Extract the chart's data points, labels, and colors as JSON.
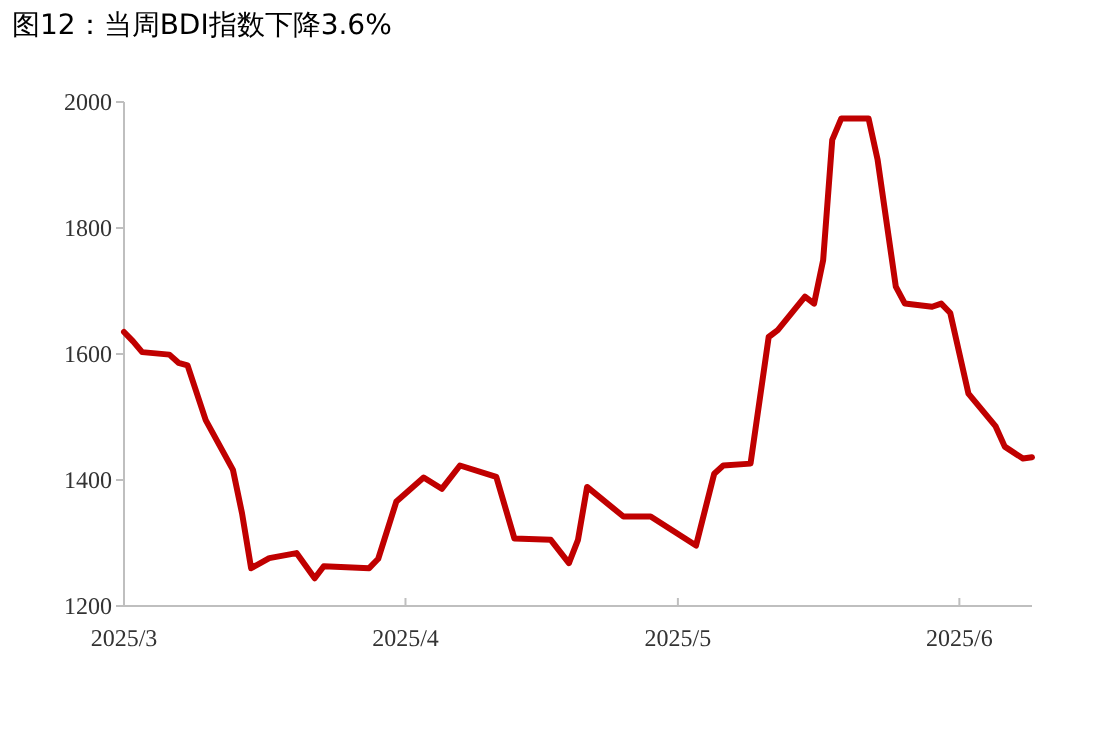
{
  "chart_data": {
    "type": "line",
    "title": "图12：当周BDI指数下降3.6%",
    "x": [
      "2025-03-01",
      "2025-03-02",
      "2025-03-03",
      "2025-03-06",
      "2025-03-07",
      "2025-03-08",
      "2025-03-10",
      "2025-03-13",
      "2025-03-14",
      "2025-03-15",
      "2025-03-17",
      "2025-03-20",
      "2025-03-22",
      "2025-03-23",
      "2025-03-28",
      "2025-03-29",
      "2025-03-31",
      "2025-04-03",
      "2025-04-05",
      "2025-04-07",
      "2025-04-11",
      "2025-04-13",
      "2025-04-17",
      "2025-04-19",
      "2025-04-20",
      "2025-04-21",
      "2025-04-25",
      "2025-04-28",
      "2025-05-03",
      "2025-05-05",
      "2025-05-06",
      "2025-05-09",
      "2025-05-11",
      "2025-05-12",
      "2025-05-15",
      "2025-05-16",
      "2025-05-17",
      "2025-05-18",
      "2025-05-19",
      "2025-05-22",
      "2025-05-23",
      "2025-05-25",
      "2025-05-26",
      "2025-05-29",
      "2025-05-30",
      "2025-05-31",
      "2025-06-02",
      "2025-06-05",
      "2025-06-06",
      "2025-06-08",
      "2025-06-09"
    ],
    "series": [
      {
        "color": "#c00000",
        "values": [
          1635,
          1620,
          1603,
          1599,
          1586,
          1582,
          1495,
          1416,
          1347,
          1260,
          1276,
          1284,
          1244,
          1263,
          1260,
          1275,
          1366,
          1404,
          1386,
          1423,
          1405,
          1307,
          1305,
          1268,
          1305,
          1389,
          1342,
          1342,
          1296,
          1410,
          1423,
          1426,
          1627,
          1638,
          1691,
          1680,
          1749,
          1940,
          1974,
          1974,
          1908,
          1707,
          1680,
          1675,
          1680,
          1665,
          1537,
          1485,
          1453,
          1434,
          1436
        ]
      }
    ],
    "xlim": [
      "2025-03-01",
      "2025-06-09"
    ],
    "xticks": [
      {
        "value": "2025-03-01",
        "label": "2025/3"
      },
      {
        "value": "2025-04-01",
        "label": "2025/4"
      },
      {
        "value": "2025-05-01",
        "label": "2025/5"
      },
      {
        "value": "2025-06-01",
        "label": "2025/6"
      }
    ],
    "ylim": [
      1200,
      2000
    ],
    "yticks": [
      1200,
      1400,
      1600,
      1800,
      2000
    ],
    "grid": false,
    "line_style": "solid",
    "marker": "none"
  }
}
